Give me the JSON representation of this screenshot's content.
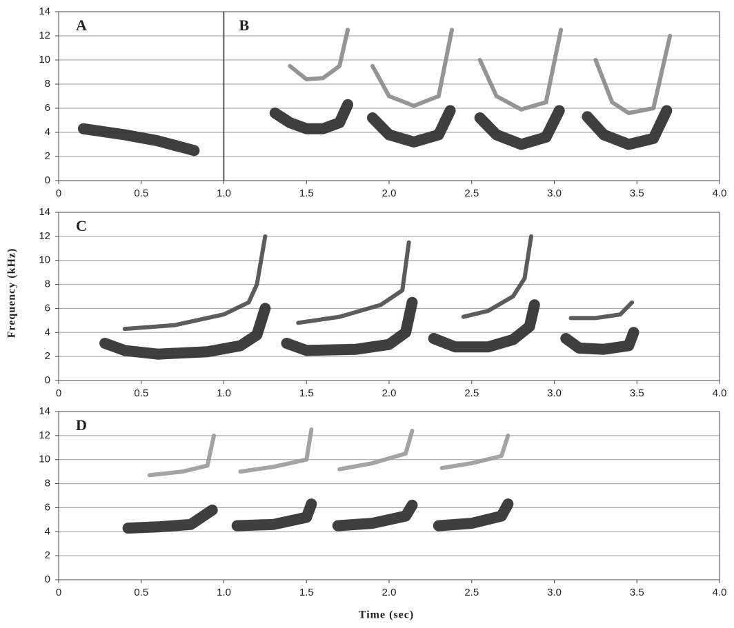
{
  "chart_data": [
    {
      "type": "line",
      "labels": [
        "A",
        "B"
      ],
      "divider": {
        "value": 1.0
      },
      "xlim": [
        0,
        4
      ],
      "ylim": [
        0,
        14
      ],
      "xticks": [
        0,
        0.5,
        {
          "value": 1,
          "label": "1.0"
        },
        1.5,
        {
          "value": 2,
          "label": "2.0"
        },
        2.5,
        {
          "value": 3,
          "label": "3.0"
        },
        3.5,
        {
          "value": 4,
          "label": "4.0"
        }
      ],
      "yticks": [
        0,
        2,
        4,
        6,
        8,
        10,
        12,
        14
      ],
      "grid": true,
      "series": [
        {
          "color": "#2a2a2a",
          "x": [
            0.15,
            0.4,
            0.6,
            0.82,
            null,
            1.31,
            1.4,
            1.5,
            1.6,
            1.7,
            1.75,
            null,
            1.9,
            2.0,
            2.15,
            2.3,
            2.37,
            null,
            2.55,
            2.65,
            2.8,
            2.95,
            3.03,
            null,
            3.2,
            3.3,
            3.45,
            3.6,
            3.68
          ],
          "values": [
            4.3,
            3.8,
            3.3,
            2.5,
            null,
            5.6,
            4.8,
            4.3,
            4.3,
            4.8,
            6.3,
            null,
            5.2,
            3.8,
            3.2,
            3.8,
            5.8,
            null,
            5.2,
            3.8,
            3.0,
            3.6,
            5.8,
            null,
            5.3,
            3.8,
            3.0,
            3.5,
            5.8
          ]
        },
        {
          "color": "#8a8a8a",
          "x": [
            1.4,
            1.5,
            1.6,
            1.7,
            1.75,
            null,
            1.9,
            2.0,
            2.15,
            2.3,
            2.38,
            null,
            2.55,
            2.65,
            2.8,
            2.95,
            3.04,
            null,
            3.25,
            3.35,
            3.45,
            3.6,
            3.7
          ],
          "values": [
            9.5,
            8.4,
            8.5,
            9.5,
            12.5,
            null,
            9.5,
            7.0,
            6.2,
            7.0,
            12.5,
            null,
            10,
            7.0,
            5.9,
            6.5,
            12.5,
            null,
            10,
            6.5,
            5.6,
            6.0,
            12
          ]
        }
      ]
    },
    {
      "type": "line",
      "labels": [
        "C"
      ],
      "ylabel": "Frequency (kHz)",
      "xlim": [
        0,
        4
      ],
      "ylim": [
        0,
        14
      ],
      "xticks": [
        0,
        0.5,
        {
          "value": 1,
          "label": "1.0"
        },
        1.5,
        {
          "value": 2,
          "label": "2.0"
        },
        2.5,
        {
          "value": 3,
          "label": "3.0"
        },
        3.5,
        {
          "value": 4,
          "label": "4.0"
        }
      ],
      "yticks": [
        0,
        2,
        4,
        6,
        8,
        10,
        12,
        14
      ],
      "grid": true,
      "series": [
        {
          "color": "#2a2a2a",
          "x": [
            0.28,
            0.4,
            0.6,
            0.9,
            1.1,
            1.2,
            1.25,
            null,
            1.38,
            1.5,
            1.8,
            2.0,
            2.1,
            2.14,
            null,
            2.27,
            2.4,
            2.6,
            2.75,
            2.85,
            2.88,
            null,
            3.07,
            3.15,
            3.3,
            3.45,
            3.48
          ],
          "values": [
            3.1,
            2.5,
            2.2,
            2.4,
            2.9,
            3.8,
            6,
            null,
            3.1,
            2.5,
            2.6,
            3,
            4,
            6.5,
            null,
            3.5,
            2.8,
            2.8,
            3.4,
            4.5,
            6.3,
            null,
            3.5,
            2.7,
            2.6,
            2.9,
            4
          ]
        },
        {
          "color": "#4a4a4a",
          "x": [
            0.4,
            0.7,
            1.0,
            1.15,
            1.2,
            1.25,
            null,
            1.45,
            1.7,
            1.95,
            2.08,
            2.12,
            null,
            2.45,
            2.6,
            2.75,
            2.82,
            2.86,
            null,
            3.1,
            3.25,
            3.4,
            3.47
          ],
          "values": [
            4.3,
            4.6,
            5.5,
            6.5,
            8,
            12,
            null,
            4.8,
            5.3,
            6.3,
            7.5,
            11.5,
            null,
            5.3,
            5.8,
            7,
            8.5,
            12,
            null,
            5.2,
            5.2,
            5.5,
            6.5
          ]
        }
      ]
    },
    {
      "type": "line",
      "labels": [
        "D"
      ],
      "xlabel": "Time (sec)",
      "xlim": [
        0,
        4
      ],
      "ylim": [
        0,
        14
      ],
      "xticks": [
        0,
        0.5,
        {
          "value": 1,
          "label": "1.0"
        },
        1.5,
        {
          "value": 2,
          "label": "2.0"
        },
        2.5,
        {
          "value": 3,
          "label": "3.0"
        },
        3.5,
        {
          "value": 4,
          "label": "4.0"
        }
      ],
      "yticks": [
        0,
        2,
        4,
        6,
        8,
        10,
        12,
        14
      ],
      "grid": true,
      "series": [
        {
          "color": "#2a2a2a",
          "x": [
            0.42,
            0.6,
            0.8,
            0.93,
            null,
            1.08,
            1.3,
            1.5,
            1.53,
            null,
            1.69,
            1.9,
            2.1,
            2.14,
            null,
            2.3,
            2.5,
            2.68,
            2.72
          ],
          "values": [
            4.3,
            4.4,
            4.6,
            5.8,
            null,
            4.5,
            4.6,
            5.2,
            6.3,
            null,
            4.5,
            4.7,
            5.3,
            6.2,
            null,
            4.5,
            4.7,
            5.3,
            6.3
          ]
        },
        {
          "color": "#9a9a9a",
          "x": [
            0.55,
            0.75,
            0.9,
            0.94,
            null,
            1.1,
            1.3,
            1.5,
            1.53,
            null,
            1.7,
            1.9,
            2.1,
            2.14,
            null,
            2.32,
            2.5,
            2.68,
            2.72
          ],
          "values": [
            8.7,
            9,
            9.5,
            12,
            null,
            9,
            9.4,
            10,
            12.5,
            null,
            9.2,
            9.7,
            10.5,
            12.4,
            null,
            9.3,
            9.7,
            10.3,
            12
          ]
        }
      ]
    }
  ]
}
